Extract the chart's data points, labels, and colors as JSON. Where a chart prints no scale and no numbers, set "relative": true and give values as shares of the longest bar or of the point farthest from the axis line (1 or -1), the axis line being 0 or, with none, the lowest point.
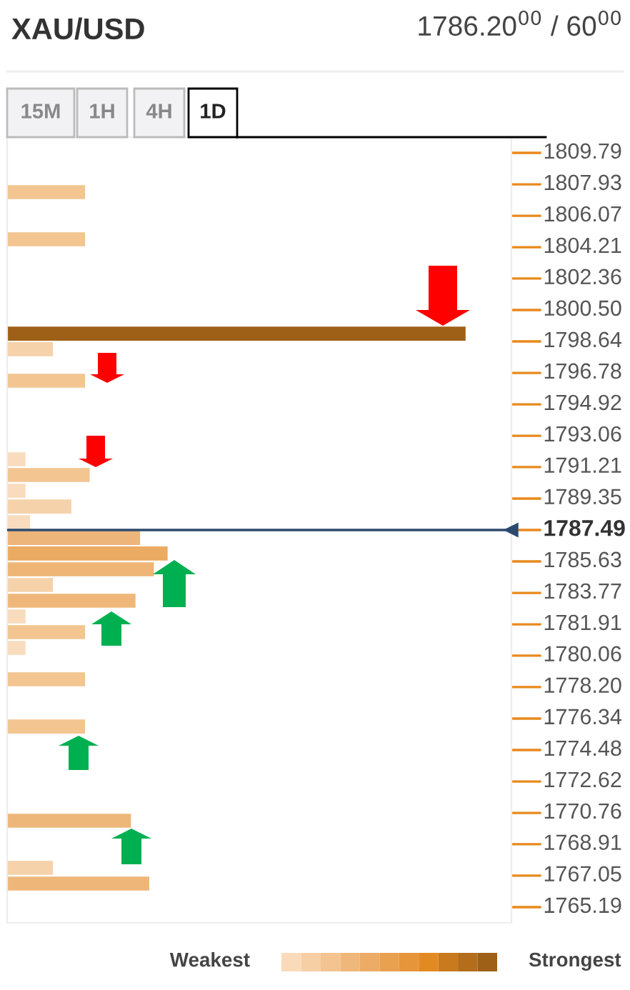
{
  "chart_data": {
    "type": "bar",
    "orientation": "horizontal",
    "relative": true,
    "title": "XAU/USD",
    "x": [
      1807.47,
      1804.68,
      1799.1,
      1798.18,
      1796.32,
      1791.67,
      1790.74,
      1789.81,
      1788.88,
      1787.95,
      1787.02,
      1786.1,
      1785.17,
      1784.24,
      1783.31,
      1782.38,
      1781.45,
      1780.52,
      1778.66,
      1775.87,
      1770.3,
      1767.51,
      1766.58
    ],
    "values": [
      0.17,
      0.17,
      1,
      0.1,
      0.17,
      0.04,
      0.18,
      0.04,
      0.14,
      0.05,
      0.29,
      0.35,
      0.32,
      0.1,
      0.28,
      0.04,
      0.17,
      0.04,
      0.17,
      0.17,
      0.27,
      0.1,
      0.31
    ],
    "colors": [
      "#f2c591",
      "#f2c591",
      "#9e5f17",
      "#f5d2aa",
      "#f2c591",
      "#f8dcbd",
      "#f2c591",
      "#f8dcbd",
      "#f5d2aa",
      "#f8dcbd",
      "#edb57a",
      "#ebab62",
      "#eeb576",
      "#f5d2aa",
      "#efb87a",
      "#f8dcbd",
      "#f2c591",
      "#f8dcbd",
      "#f2c591",
      "#f2c591",
      "#edb779",
      "#f5d2aa",
      "#eeb678"
    ],
    "ylim": [
      1764.26,
      1810.72
    ],
    "yticks": [
      1809.79,
      1807.93,
      1806.07,
      1804.21,
      1802.36,
      {
        "value": 1800.5,
        "label": "1800.50"
      },
      1798.64,
      1796.78,
      1794.92,
      1793.06,
      1791.21,
      1789.35,
      1787.49,
      1785.63,
      1783.77,
      1781.91,
      1780.06,
      {
        "value": 1778.2,
        "label": "1778.20"
      },
      1776.34,
      1774.48,
      1772.62,
      1770.76,
      1768.91,
      1767.05,
      1765.19
    ],
    "ref_lines": [
      {
        "axis": "y",
        "value": 1787.49,
        "color": "#2c4a6e"
      }
    ],
    "annotations": [
      "1786.20$^{00}$ / 60$^{00}$",
      "15M",
      "1H",
      "4H",
      "1D",
      "Weakest",
      "Strongest"
    ]
  }
}
